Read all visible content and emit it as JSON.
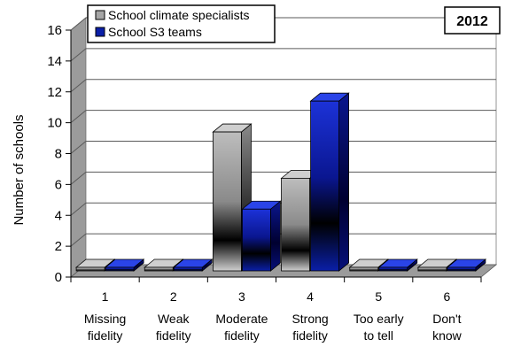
{
  "chart_data": {
    "type": "bar",
    "categories": [
      "1",
      "2",
      "3",
      "4",
      "5",
      "6"
    ],
    "category_descriptions": [
      [
        "Missing",
        "fidelity"
      ],
      [
        "Weak",
        "fidelity"
      ],
      [
        "Moderate",
        "fidelity"
      ],
      [
        "Strong",
        "fidelity"
      ],
      [
        "Too early",
        "to tell"
      ],
      [
        "Don't",
        "know"
      ]
    ],
    "series": [
      {
        "name": "School climate specialists",
        "values": [
          0,
          0,
          9,
          6,
          0,
          0
        ],
        "color": "#a6a6a6"
      },
      {
        "name": "School S3 teams",
        "values": [
          0,
          0,
          4,
          11,
          0,
          0
        ],
        "color": "#0a1fa8"
      }
    ],
    "ylabel": "Number of schools",
    "ylim": [
      0,
      16
    ],
    "yticks": [
      0,
      2,
      4,
      6,
      8,
      10,
      12,
      14,
      16
    ],
    "annotation": "2012",
    "grid": true,
    "legend_position": "top-left"
  }
}
